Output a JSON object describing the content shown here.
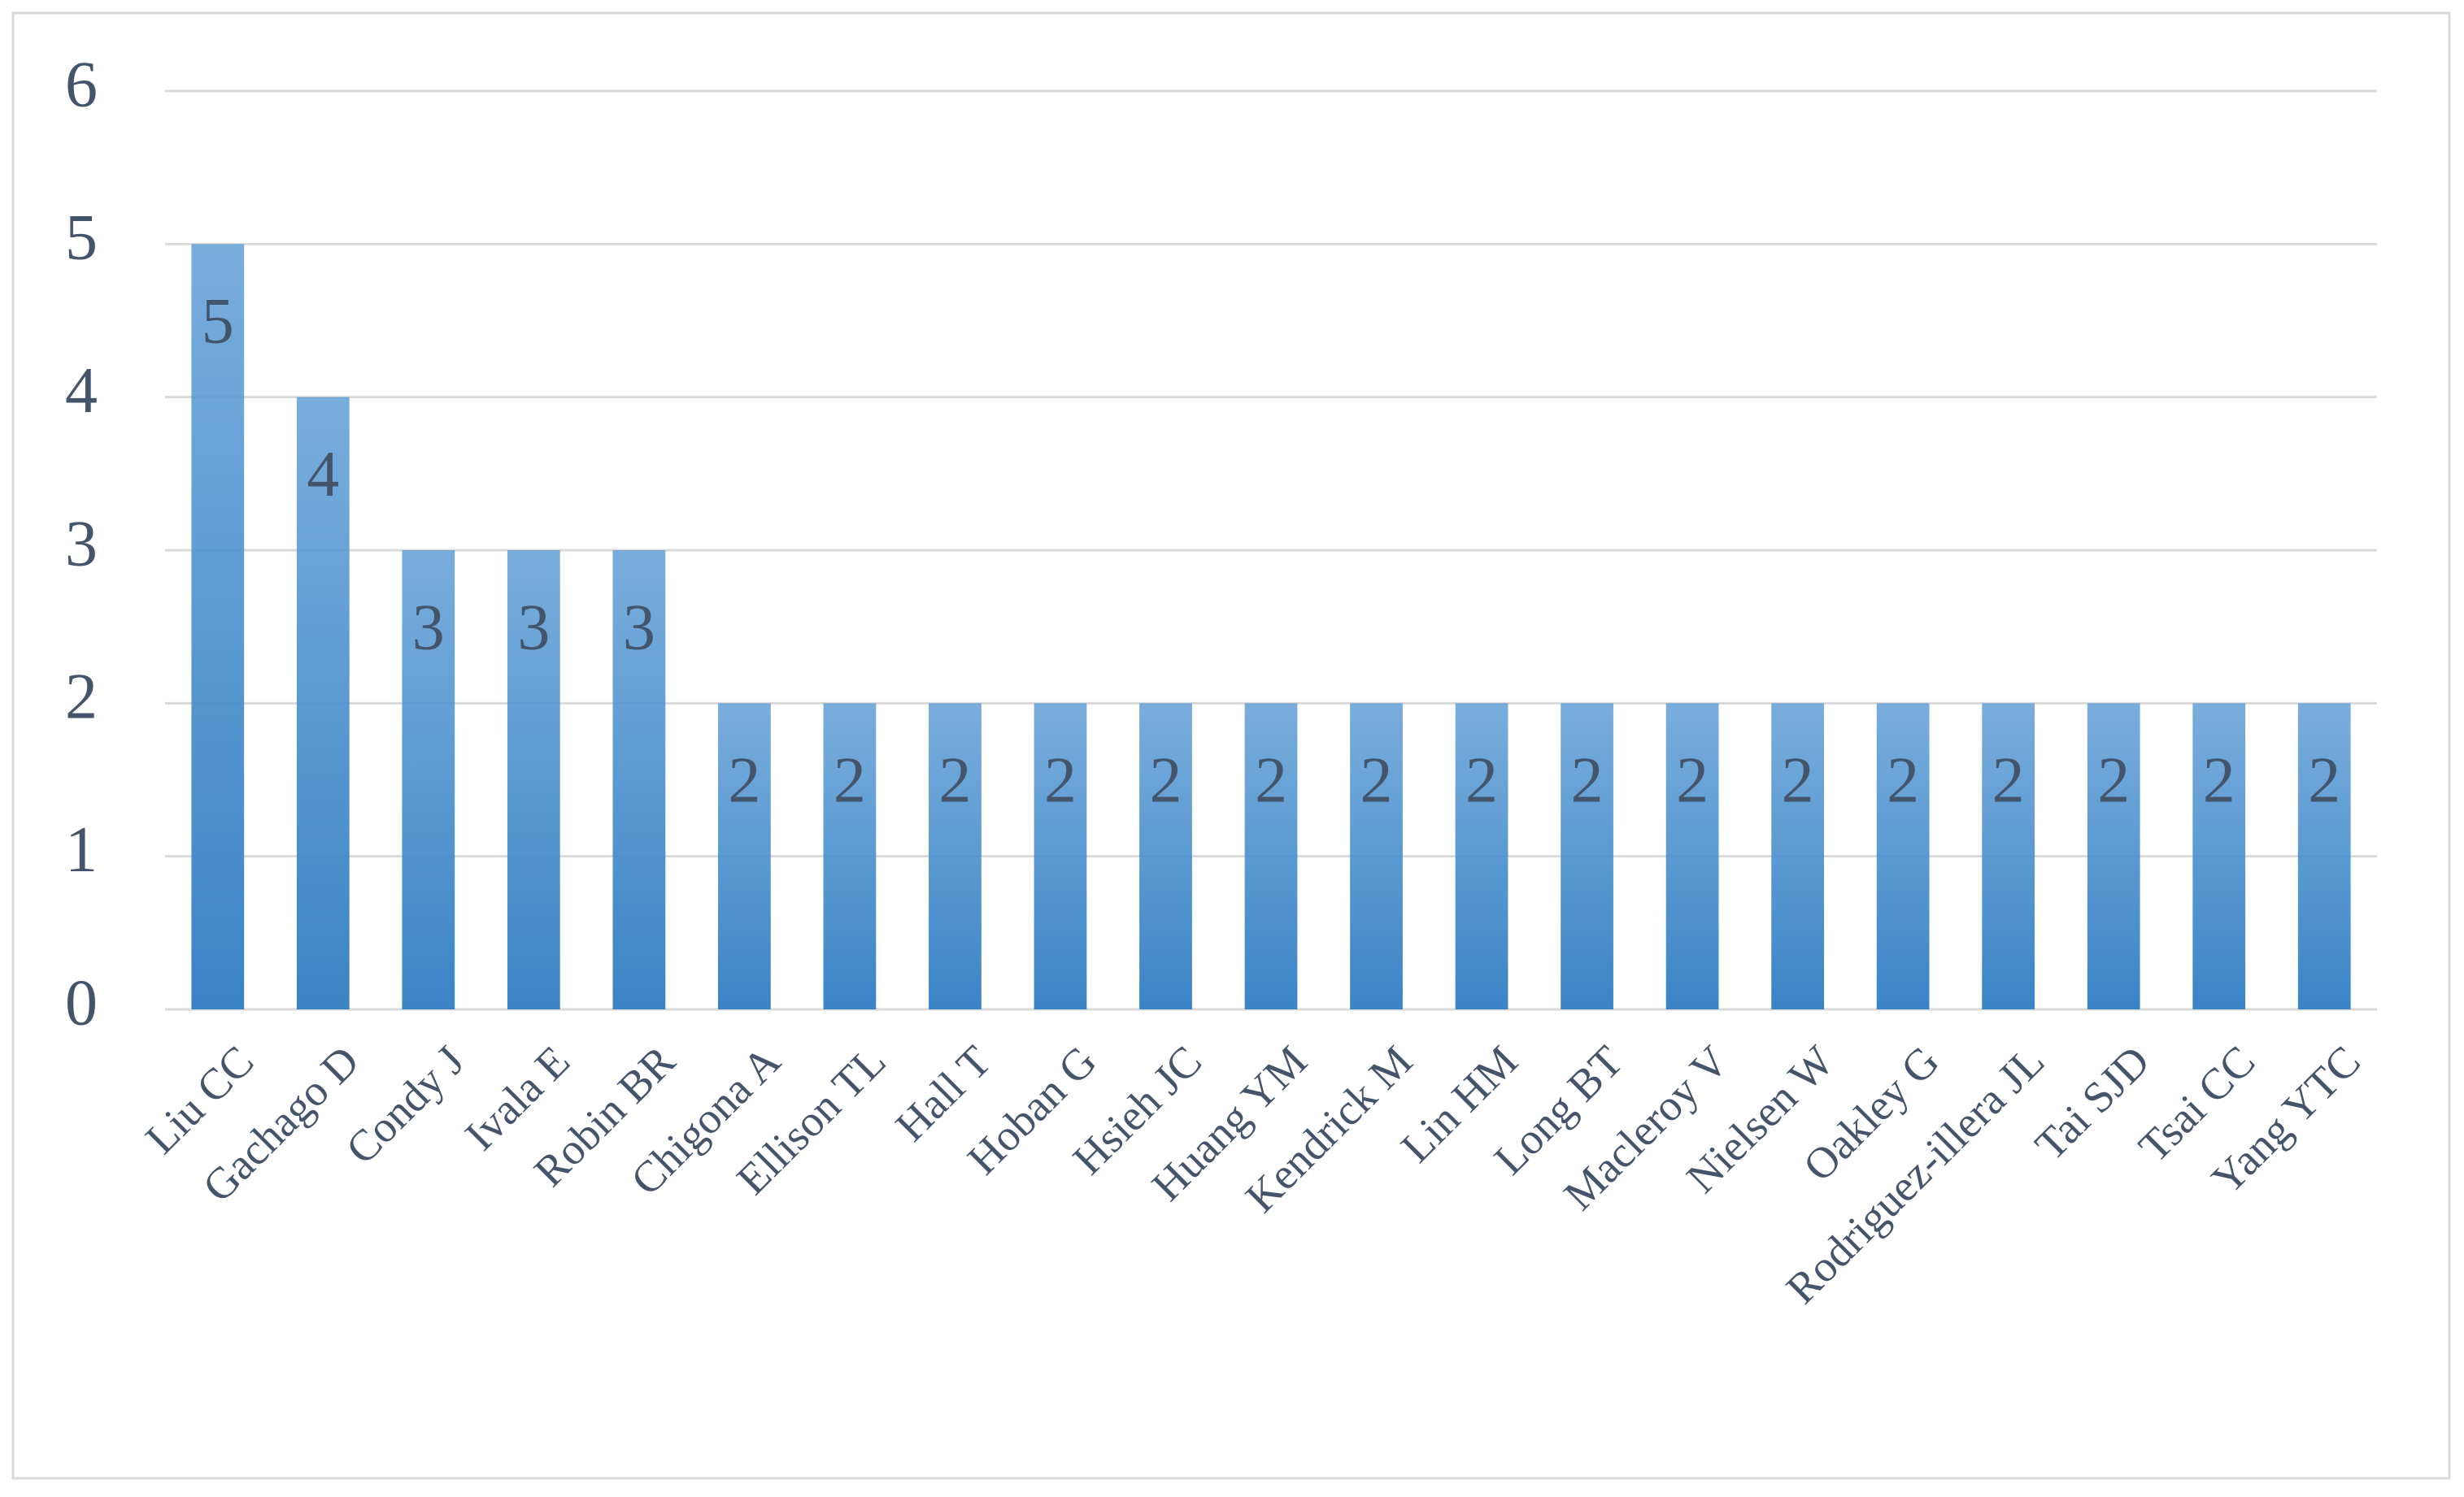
{
  "chart_data": {
    "type": "bar",
    "categories": [
      "Liu CC",
      "Gachago D",
      "Condy J",
      "Ivala E",
      "Robin BR",
      "Chigona A",
      "Ellison TL",
      "Hall T",
      "Hoban G",
      "Hsieh JC",
      "Huang YM",
      "Kendrick M",
      "Lin HM",
      "Long BT",
      "Macleroy V",
      "Nielsen W",
      "Oakley G",
      "Rodriguez-illera JL",
      "Tai SJD",
      "Tsai CC",
      "Yang YTC"
    ],
    "values": [
      5,
      4,
      3,
      3,
      3,
      2,
      2,
      2,
      2,
      2,
      2,
      2,
      2,
      2,
      2,
      2,
      2,
      2,
      2,
      2,
      2
    ],
    "color": "#5b9bd5",
    "ylim": [
      0,
      6
    ],
    "yticks": [
      0,
      1,
      2,
      3,
      4,
      5,
      6
    ],
    "grid": true
  }
}
